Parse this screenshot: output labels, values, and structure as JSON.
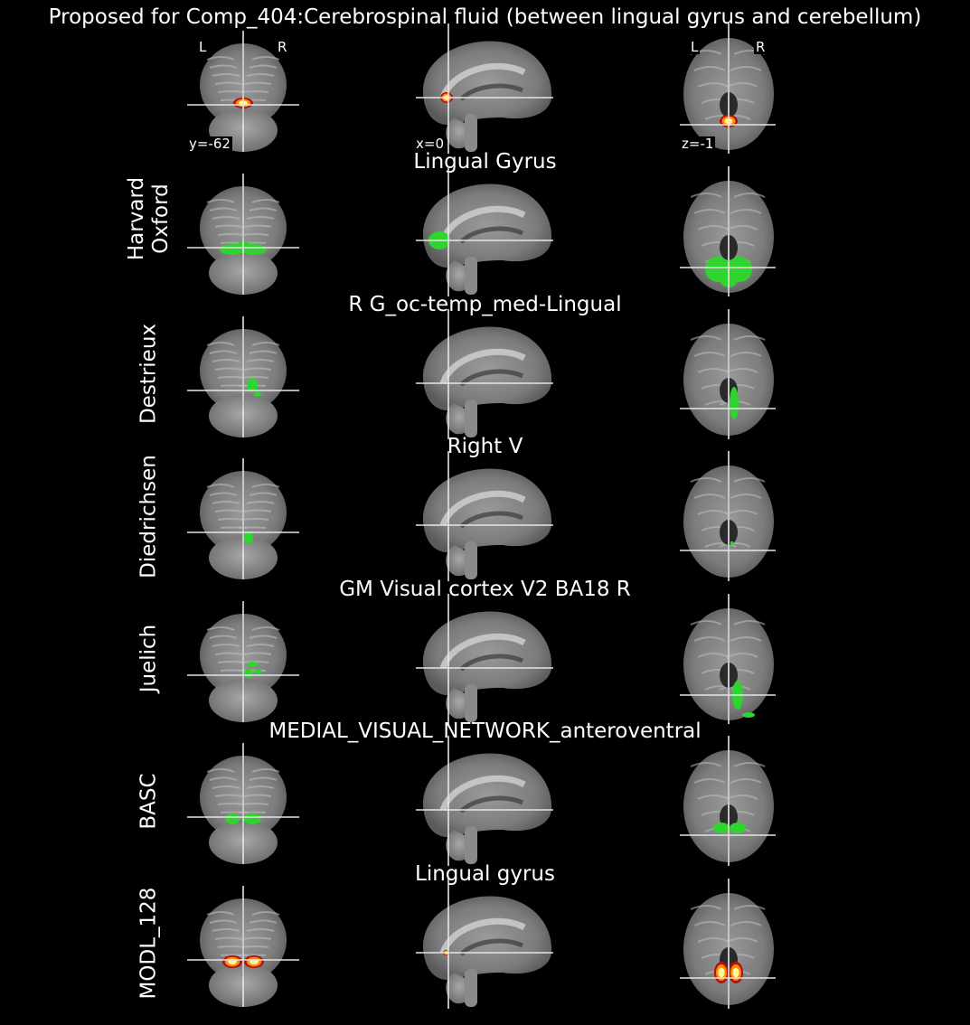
{
  "figure": {
    "title": "Proposed for Comp_404:Cerebrospinal fluid (between lingual gyrus and cerebellum)"
  },
  "header_row": {
    "left_label": "L",
    "right_label": "R",
    "axial_left_label": "L",
    "axial_right_label": "R",
    "coronal_coord": "y=-62",
    "sagittal_coord": "x=0",
    "axial_coord": "z=-1",
    "overlay": "heat"
  },
  "rows": [
    {
      "atlas": "Harvard\nOxford",
      "region": "Lingual Gyrus",
      "overlay": "green"
    },
    {
      "atlas": "Destrieux",
      "region": "R G_oc-temp_med-Lingual",
      "overlay": "green"
    },
    {
      "atlas": "Diedrichsen",
      "region": "Right V",
      "overlay": "green"
    },
    {
      "atlas": "Juelich",
      "region": "GM Visual cortex V2 BA18 R",
      "overlay": "green"
    },
    {
      "atlas": "BASC",
      "region": "MEDIAL_VISUAL_NETWORK_anteroventral",
      "overlay": "green"
    },
    {
      "atlas": "MODL_128",
      "region": "Lingual gyrus",
      "overlay": "heat"
    }
  ],
  "colors": {
    "background": "#000000",
    "crosshair": "#e6e6e6",
    "overlay_green": "#2fd42f",
    "overlay_heat_outer": "#b01010",
    "overlay_heat_mid": "#ff8c00",
    "overlay_heat_core": "#fff4a0"
  }
}
